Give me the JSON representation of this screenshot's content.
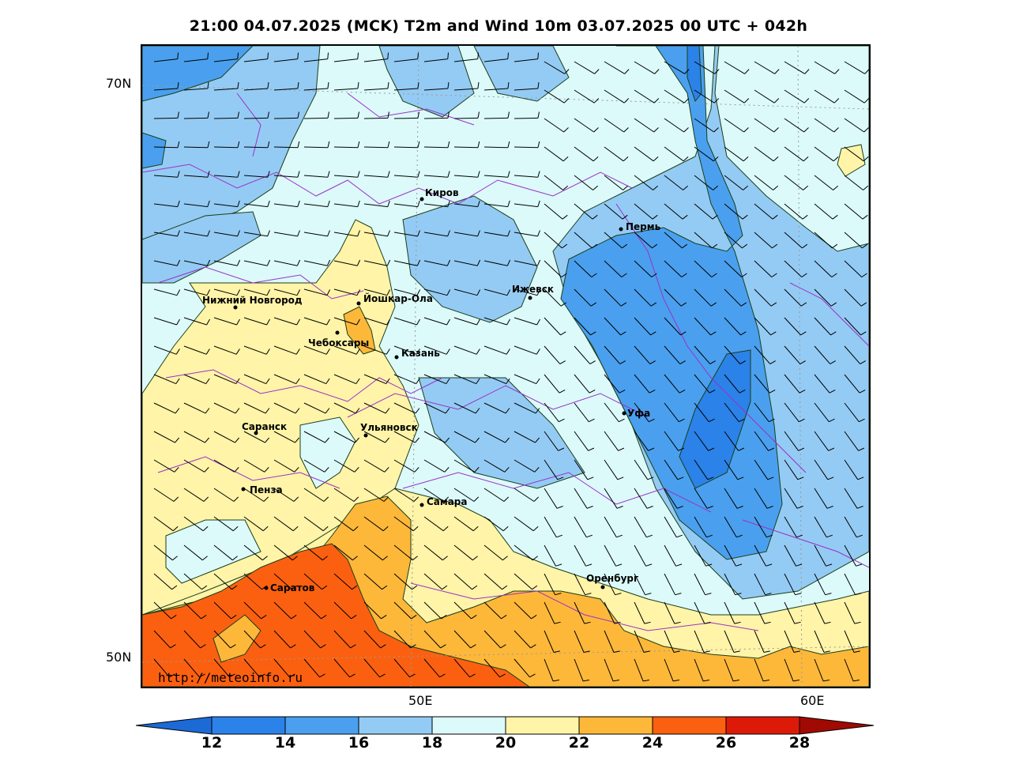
{
  "title": "21:00 04.07.2025 (MCK) T2m and Wind 10m 03.07.2025 00 UTC + 042h",
  "watermark": "http://meteoinfo.ru",
  "axes": {
    "lat_labels": [
      {
        "label": "70N",
        "value": 70
      },
      {
        "label": "50N",
        "value": 50
      }
    ],
    "lon_labels": [
      {
        "label": "50E",
        "value": 50
      },
      {
        "label": "60E",
        "value": 60
      }
    ]
  },
  "colorbar": {
    "ticks": [
      "12",
      "14",
      "16",
      "18",
      "20",
      "22",
      "24",
      "26",
      "28"
    ],
    "colors": [
      "#1c6ad6",
      "#2b82e8",
      "#4aa0ee",
      "#94cbf4",
      "#dcfafa",
      "#fff4a8",
      "#fdb83a",
      "#fb6010",
      "#dd1a08",
      "#a00a02"
    ]
  },
  "cities": [
    {
      "name": "Киров"
    },
    {
      "name": "Пермь"
    },
    {
      "name": "Нижний Новгород"
    },
    {
      "name": "Йошкар-Ола"
    },
    {
      "name": "Ижевск"
    },
    {
      "name": "Чебоксары"
    },
    {
      "name": "Казань"
    },
    {
      "name": "Уфа"
    },
    {
      "name": "Саранск"
    },
    {
      "name": "Ульяновск"
    },
    {
      "name": "Пенза"
    },
    {
      "name": "Самара"
    },
    {
      "name": "Оренбург"
    },
    {
      "name": "Саратов"
    }
  ]
}
